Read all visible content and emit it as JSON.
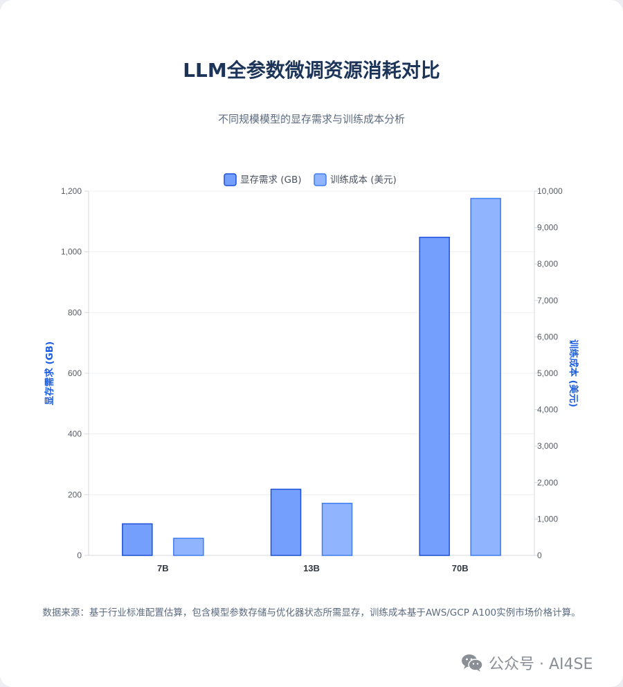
{
  "title": "LLM全参数微调资源消耗对比",
  "subtitle": "不同规模模型的显存需求与训练成本分析",
  "source_note": "数据来源：基于行业标准配置估算，包含模型参数存储与优化器状态所需显存，训练成本基于AWS/GCP A100实例市场价格计算。",
  "watermark": {
    "text": "公众号 · AI4SE",
    "icon": "wechat-icon",
    "color": "#8a8f96"
  },
  "colors": {
    "memory_fill": "#749ffc",
    "memory_stroke": "#1d4fd8",
    "cost_fill": "#90b4fd",
    "cost_stroke": "#3f7cf0",
    "axis_label": "#1d5fe0"
  },
  "chart_data": {
    "type": "bar",
    "categories": [
      "7B",
      "13B",
      "70B"
    ],
    "series": [
      {
        "name": "显存需求 (GB)",
        "axis": "left",
        "values": [
          104,
          218,
          1048
        ]
      },
      {
        "name": "训练成本 (美元)",
        "axis": "right",
        "values": [
          470,
          1430,
          9800
        ]
      }
    ],
    "y_left": {
      "label": "显存需求 (GB)",
      "range": [
        0,
        1200
      ],
      "ticks": [
        0,
        200,
        400,
        600,
        800,
        1000,
        1200
      ],
      "tick_labels": [
        "0",
        "200",
        "400",
        "600",
        "800",
        "1,000",
        "1,200"
      ]
    },
    "y_right": {
      "label": "训练成本 (美元)",
      "range": [
        0,
        10000
      ],
      "ticks": [
        0,
        1000,
        2000,
        3000,
        4000,
        5000,
        6000,
        7000,
        8000,
        9000,
        10000
      ],
      "tick_labels": [
        "0",
        "1,000",
        "2,000",
        "3,000",
        "4,000",
        "5,000",
        "6,000",
        "7,000",
        "8,000",
        "9,000",
        "10,000"
      ]
    },
    "grid": true,
    "legend": "top-center"
  }
}
